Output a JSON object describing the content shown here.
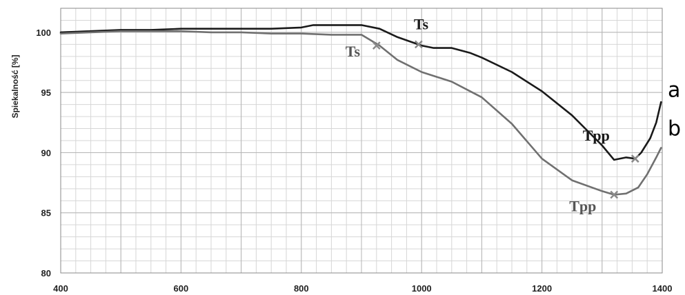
{
  "chart_data": {
    "type": "line",
    "ylabel": "Spiekalność [%]",
    "xlabel": "",
    "xlim": [
      400,
      1400
    ],
    "ylim": [
      80,
      102
    ],
    "x_ticks": [
      "400",
      "600",
      "800",
      "1000",
      "1200",
      "1400"
    ],
    "y_ticks": [
      "80",
      "85",
      "90",
      "95",
      "100"
    ],
    "grid": true,
    "series": [
      {
        "name": "a",
        "color": "#1a1a1a",
        "x": [
          400,
          450,
          500,
          550,
          600,
          650,
          700,
          750,
          800,
          820,
          850,
          900,
          930,
          960,
          1000,
          1020,
          1050,
          1080,
          1100,
          1150,
          1200,
          1250,
          1300,
          1320,
          1340,
          1355,
          1365,
          1380,
          1390,
          1398
        ],
        "y": [
          100.0,
          100.1,
          100.2,
          100.2,
          100.3,
          100.3,
          100.3,
          100.3,
          100.4,
          100.6,
          100.6,
          100.6,
          100.3,
          99.6,
          98.9,
          98.7,
          98.7,
          98.3,
          97.9,
          96.7,
          95.1,
          93.1,
          90.6,
          89.4,
          89.6,
          89.5,
          90.0,
          91.2,
          92.5,
          94.2
        ]
      },
      {
        "name": "b",
        "color": "#707070",
        "x": [
          400,
          450,
          500,
          550,
          600,
          650,
          700,
          750,
          800,
          850,
          900,
          930,
          960,
          1000,
          1050,
          1100,
          1150,
          1200,
          1250,
          1300,
          1320,
          1340,
          1360,
          1375,
          1390,
          1398
        ],
        "y": [
          99.9,
          100.0,
          100.1,
          100.1,
          100.1,
          100.0,
          100.0,
          99.9,
          99.9,
          99.8,
          99.8,
          98.9,
          97.7,
          96.7,
          95.9,
          94.6,
          92.4,
          89.5,
          87.7,
          86.8,
          86.5,
          86.6,
          87.1,
          88.2,
          89.6,
          90.4
        ]
      }
    ],
    "annotations": [
      {
        "text": "Ts",
        "series": "a",
        "x": 995,
        "y": 99.0,
        "marker": "x"
      },
      {
        "text": "Ts",
        "series": "b",
        "x": 925,
        "y": 98.9,
        "marker": "x"
      },
      {
        "text": "Tpp",
        "series": "a",
        "x": 1355,
        "y": 89.5,
        "marker": "x"
      },
      {
        "text": "Tpp",
        "series": "b",
        "x": 1320,
        "y": 86.5,
        "marker": "x"
      }
    ],
    "side_labels": [
      "a",
      "b"
    ]
  }
}
